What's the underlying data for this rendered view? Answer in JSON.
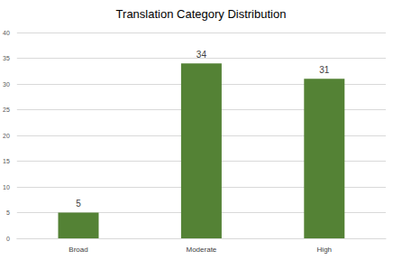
{
  "chart_data": {
    "type": "bar",
    "title": "Translation Category Distribution",
    "categories": [
      "Broad",
      "Moderate",
      "High"
    ],
    "values": [
      5,
      34,
      31
    ],
    "color": "#548235",
    "ylim": [
      0,
      40
    ],
    "yticks": [
      0,
      5,
      10,
      15,
      20,
      25,
      30,
      35,
      40
    ],
    "grid": true,
    "data_labels": true
  }
}
